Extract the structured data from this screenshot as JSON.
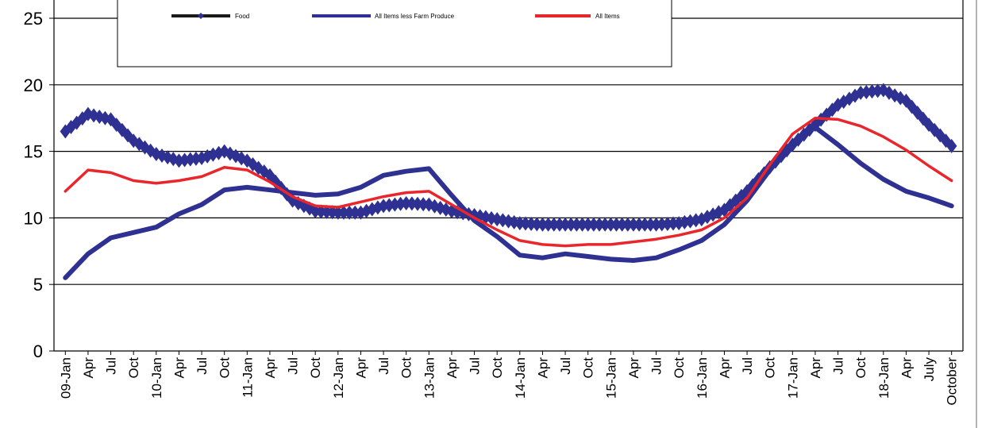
{
  "chart_data": {
    "type": "line",
    "title": "",
    "xlabel": "",
    "ylabel": "",
    "ylim": [
      0,
      25
    ],
    "yticks": [
      0,
      5,
      10,
      15,
      20,
      25
    ],
    "grid": "horizontal",
    "legend_position": "top-left",
    "x_labels": [
      "09-Jan",
      "Apr",
      "Jul",
      "Oct",
      "10-Jan",
      "Apr",
      "Jul",
      "Oct",
      "11-Jan",
      "Apr",
      "Jul",
      "Oct",
      "12-Jan",
      "Apr",
      "Jul",
      "Oct",
      "13-Jan",
      "Apr",
      "Jul",
      "Oct",
      "14-Jan",
      "Apr",
      "Jul",
      "Oct",
      "15-Jan",
      "Apr",
      "Jul",
      "Oct",
      "16-Jan",
      "Apr",
      "Jul",
      "Oct",
      "17-Jan",
      "Apr",
      "Jul",
      "Oct",
      "18-Jan",
      "Apr",
      "July",
      "October"
    ],
    "series": [
      {
        "name": "Food",
        "color": "#2e3192",
        "style": "diamond-markers",
        "values": [
          16.5,
          17.8,
          17.4,
          15.8,
          14.8,
          14.3,
          14.5,
          15.0,
          14.3,
          13.2,
          11.3,
          10.5,
          10.4,
          10.4,
          10.9,
          11.1,
          11.0,
          10.5,
          10.2,
          9.9,
          9.6,
          9.5,
          9.5,
          9.5,
          9.5,
          9.5,
          9.5,
          9.6,
          9.9,
          10.6,
          12.0,
          13.8,
          15.5,
          17.0,
          18.5,
          19.4,
          19.6,
          18.8,
          17.0,
          15.4
        ]
      },
      {
        "name": "All Items less Farm Produce",
        "color": "#2e3192",
        "style": "line",
        "values": [
          5.5,
          7.3,
          8.5,
          8.9,
          9.3,
          10.3,
          11.0,
          12.1,
          12.3,
          12.1,
          11.9,
          11.7,
          11.8,
          12.3,
          13.2,
          13.5,
          13.7,
          11.7,
          9.8,
          8.6,
          7.2,
          7.0,
          7.3,
          7.1,
          6.9,
          6.8,
          7.0,
          7.6,
          8.3,
          9.5,
          11.3,
          13.6,
          15.7,
          16.8,
          15.5,
          14.1,
          12.9,
          12.0,
          11.5,
          10.9
        ]
      },
      {
        "name": "All Items",
        "color": "#e8262b",
        "style": "line",
        "values": [
          12.0,
          13.6,
          13.4,
          12.8,
          12.6,
          12.8,
          13.1,
          13.8,
          13.6,
          12.7,
          11.6,
          10.9,
          10.8,
          11.2,
          11.6,
          11.9,
          12.0,
          11.0,
          10.0,
          9.1,
          8.3,
          8.0,
          7.9,
          8.0,
          8.0,
          8.2,
          8.4,
          8.7,
          9.1,
          10.0,
          11.5,
          14.0,
          16.3,
          17.5,
          17.4,
          16.9,
          16.1,
          15.1,
          13.9,
          12.8
        ]
      }
    ]
  }
}
